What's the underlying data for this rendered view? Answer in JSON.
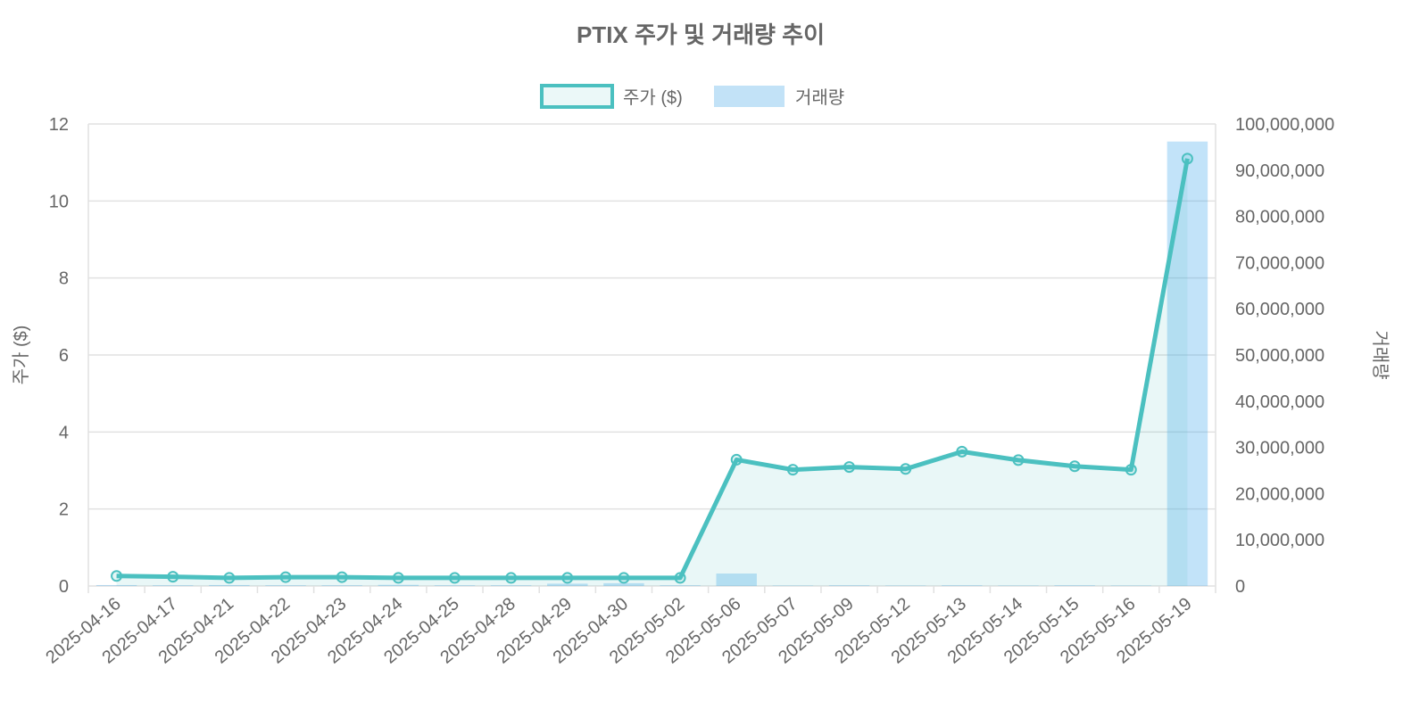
{
  "chart_data": {
    "type": "line+bar",
    "title": "PTIX 주가 및 거래량 추이",
    "categories": [
      "2025-04-16",
      "2025-04-17",
      "2025-04-21",
      "2025-04-22",
      "2025-04-23",
      "2025-04-24",
      "2025-04-25",
      "2025-04-28",
      "2025-04-29",
      "2025-04-30",
      "2025-05-02",
      "2025-05-06",
      "2025-05-07",
      "2025-05-09",
      "2025-05-12",
      "2025-05-13",
      "2025-05-14",
      "2025-05-15",
      "2025-05-16",
      "2025-05-19"
    ],
    "series": [
      {
        "name": "주가 ($)",
        "type": "line",
        "axis": "left",
        "color": "#4BC0C0",
        "values": [
          0.26,
          0.24,
          0.21,
          0.23,
          0.23,
          0.21,
          0.21,
          0.21,
          0.21,
          0.21,
          0.21,
          3.28,
          3.02,
          3.09,
          3.04,
          3.49,
          3.27,
          3.11,
          3.02,
          11.1
        ]
      },
      {
        "name": "거래량",
        "type": "bar",
        "axis": "right",
        "color": "#BFE0F6",
        "values": [
          200000,
          150000,
          200000,
          150000,
          150000,
          250000,
          150000,
          150000,
          500000,
          600000,
          150000,
          2700000,
          100000,
          150000,
          100000,
          150000,
          100000,
          150000,
          100000,
          96200000
        ]
      }
    ],
    "left_axis": {
      "label": "주가 ($)",
      "range": [
        0,
        12
      ],
      "ticks": [
        "0",
        "2",
        "4",
        "6",
        "8",
        "10",
        "12"
      ]
    },
    "right_axis": {
      "label": "거래량",
      "range": [
        0,
        100000000
      ],
      "ticks": [
        "0",
        "10,000,000",
        "20,000,000",
        "30,000,000",
        "40,000,000",
        "50,000,000",
        "60,000,000",
        "70,000,000",
        "80,000,000",
        "90,000,000",
        "100,000,000"
      ]
    },
    "legend": {
      "placement": "top-center",
      "items": [
        "주가 ($)",
        "거래량"
      ]
    },
    "grid": true
  }
}
